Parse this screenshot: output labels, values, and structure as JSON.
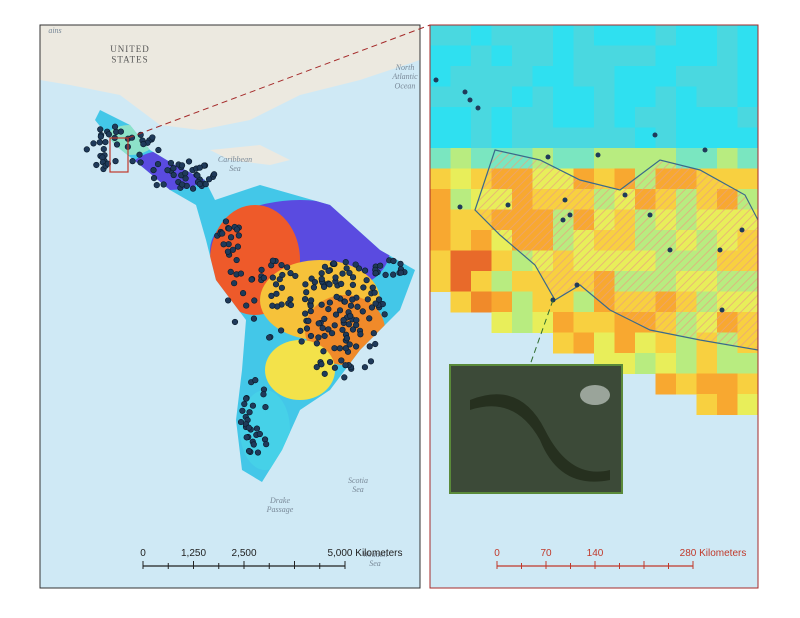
{
  "left_map": {
    "labels": {
      "partial_top": "ains",
      "country": "UNITED\nSTATES",
      "ocean": "North\nAtlantic\nOcean",
      "caribbean": "Caribbean\nSea",
      "scotia": "Scotia\nSea",
      "drake": "Drake\nPassage",
      "weddell": "Weddell\nSea"
    },
    "scale_bar": {
      "labels": [
        "0",
        "1,250",
        "2,500",
        "5,000 Kilometers"
      ]
    }
  },
  "right_map": {
    "scale_bar": {
      "labels": [
        "0",
        "70",
        "140",
        "280 Kilometers"
      ]
    }
  }
}
